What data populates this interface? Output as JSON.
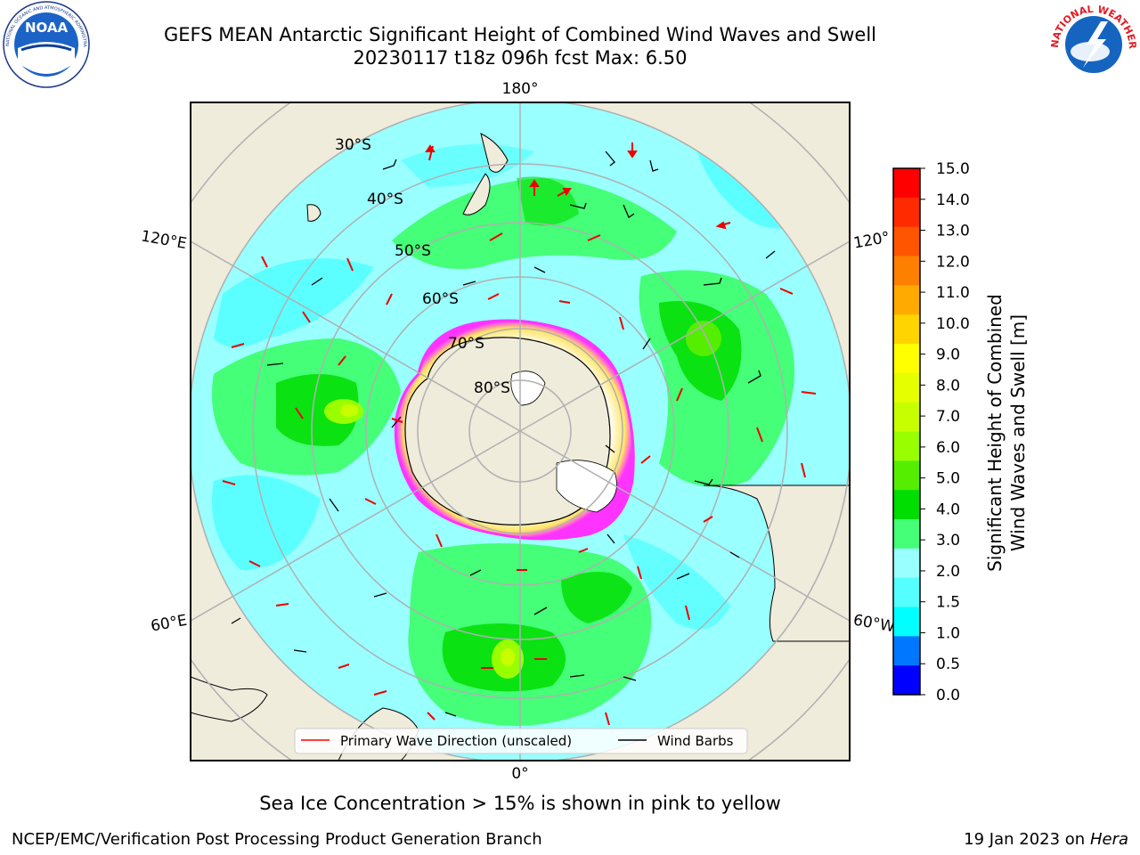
{
  "title": {
    "line1": "GEFS MEAN Antarctic Significant Height of Combined Wind Waves and Swell",
    "line2": "20230117 t18z 096h fcst   Max: 6.50"
  },
  "map": {
    "longitude_labels": {
      "top": "180°",
      "bottom": "0°",
      "upper_left": "120°E",
      "upper_right": "120°",
      "lower_left": "60°E",
      "lower_right": "60°W"
    },
    "latitude_labels": [
      "30°S",
      "40°S",
      "50°S",
      "60°S",
      "70°S",
      "80°S"
    ],
    "colors": {
      "land": "#efecdc",
      "coast": "#000000",
      "grid": "#b0b0b0",
      "ice_pink": "#ff33ff",
      "ice_yellow": "#ffe566"
    }
  },
  "legend": {
    "primary_wave_direction": "Primary Wave Direction (unscaled)",
    "wind_barbs": "Wind Barbs",
    "primary_wave_color": "#ff0000",
    "wind_barb_color": "#000000"
  },
  "colorbar": {
    "label_line1": "Significant Height of Combined",
    "label_line2": "Wind Waves and Swell [m]",
    "ticks": [
      "15.0",
      "14.0",
      "13.0",
      "12.0",
      "11.0",
      "10.0",
      "9.0",
      "8.0",
      "7.0",
      "6.0",
      "5.0",
      "4.0",
      "3.0",
      "2.0",
      "1.5",
      "1.0",
      "0.5",
      "0.0"
    ],
    "colors_top_to_bottom": [
      "#ff0000",
      "#ff2a00",
      "#ff5500",
      "#ff7f00",
      "#ffaa00",
      "#ffd400",
      "#ffff00",
      "#e5ff00",
      "#c8ff00",
      "#99ff00",
      "#55ee00",
      "#00dd00",
      "#44ff77",
      "#99ffff",
      "#55ffff",
      "#00ffff",
      "#0077ff",
      "#0000ff"
    ]
  },
  "note": "Sea Ice Concentration > 15% is shown in pink to yellow",
  "footer": {
    "left": "NCEP/EMC/Verification Post Processing Product Generation Branch",
    "right_prefix": "19 Jan 2023 on ",
    "right_host": "Hera"
  },
  "logos": {
    "noaa_text": "NOAA",
    "nws_text": "NATIONAL WEATHER SERVICE"
  }
}
